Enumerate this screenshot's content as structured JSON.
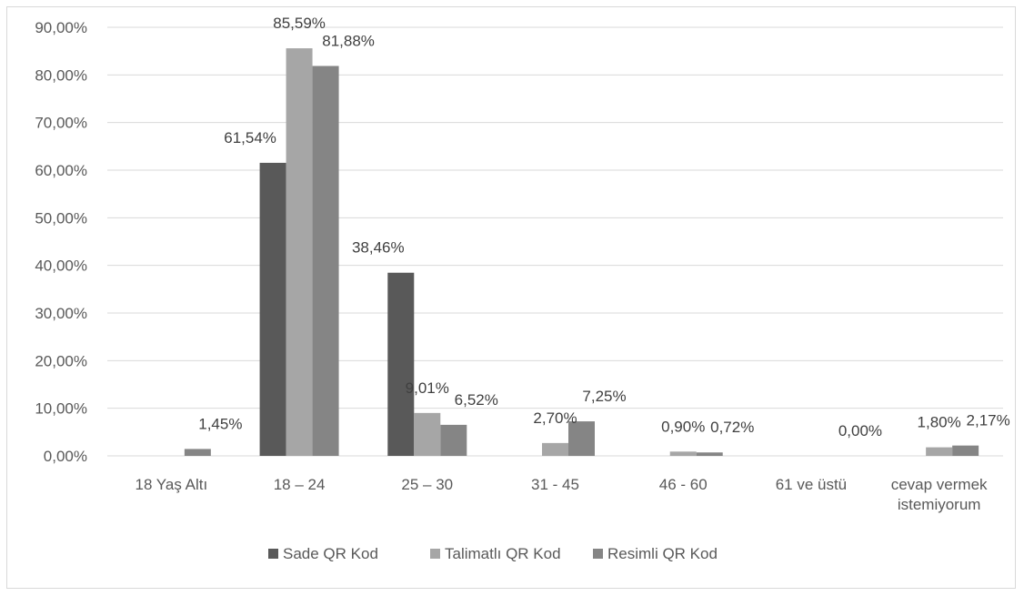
{
  "chart_data": {
    "type": "bar",
    "categories": [
      [
        "18 Yaş Altı"
      ],
      [
        "18 – 24"
      ],
      [
        "25 – 30"
      ],
      [
        "31 - 45"
      ],
      [
        "46 - 60"
      ],
      [
        "61 ve üstü"
      ],
      [
        "cevap vermek",
        "istemiyorum"
      ]
    ],
    "series": [
      {
        "name": "Sade QR Kod",
        "color": "#595959",
        "values": [
          0,
          61.54,
          38.46,
          0,
          0,
          0,
          0
        ],
        "labels": [
          null,
          "61,54%",
          "38,46%",
          null,
          null,
          null,
          null
        ]
      },
      {
        "name": "Talimatlı QR Kod",
        "color": "#a6a6a6",
        "values": [
          0,
          85.59,
          9.01,
          2.7,
          0.9,
          0,
          1.8
        ],
        "labels": [
          null,
          "85,59%",
          "9,01%",
          "2,70%",
          "0,90%",
          null,
          "1,80%"
        ]
      },
      {
        "name": "Resimli QR Kod",
        "color": "#858585",
        "values": [
          1.45,
          81.88,
          6.52,
          7.25,
          0.72,
          0,
          2.17
        ],
        "labels": [
          "1,45%",
          "81,88%",
          "6,52%",
          "7,25%",
          "0,72%",
          "0,00%",
          "2,17%"
        ]
      }
    ],
    "ylim": [
      0,
      90
    ],
    "yticks": [
      "0,00%",
      "10,00%",
      "20,00%",
      "30,00%",
      "40,00%",
      "50,00%",
      "60,00%",
      "70,00%",
      "80,00%",
      "90,00%"
    ],
    "grid": true,
    "legend_position": "bottom"
  }
}
